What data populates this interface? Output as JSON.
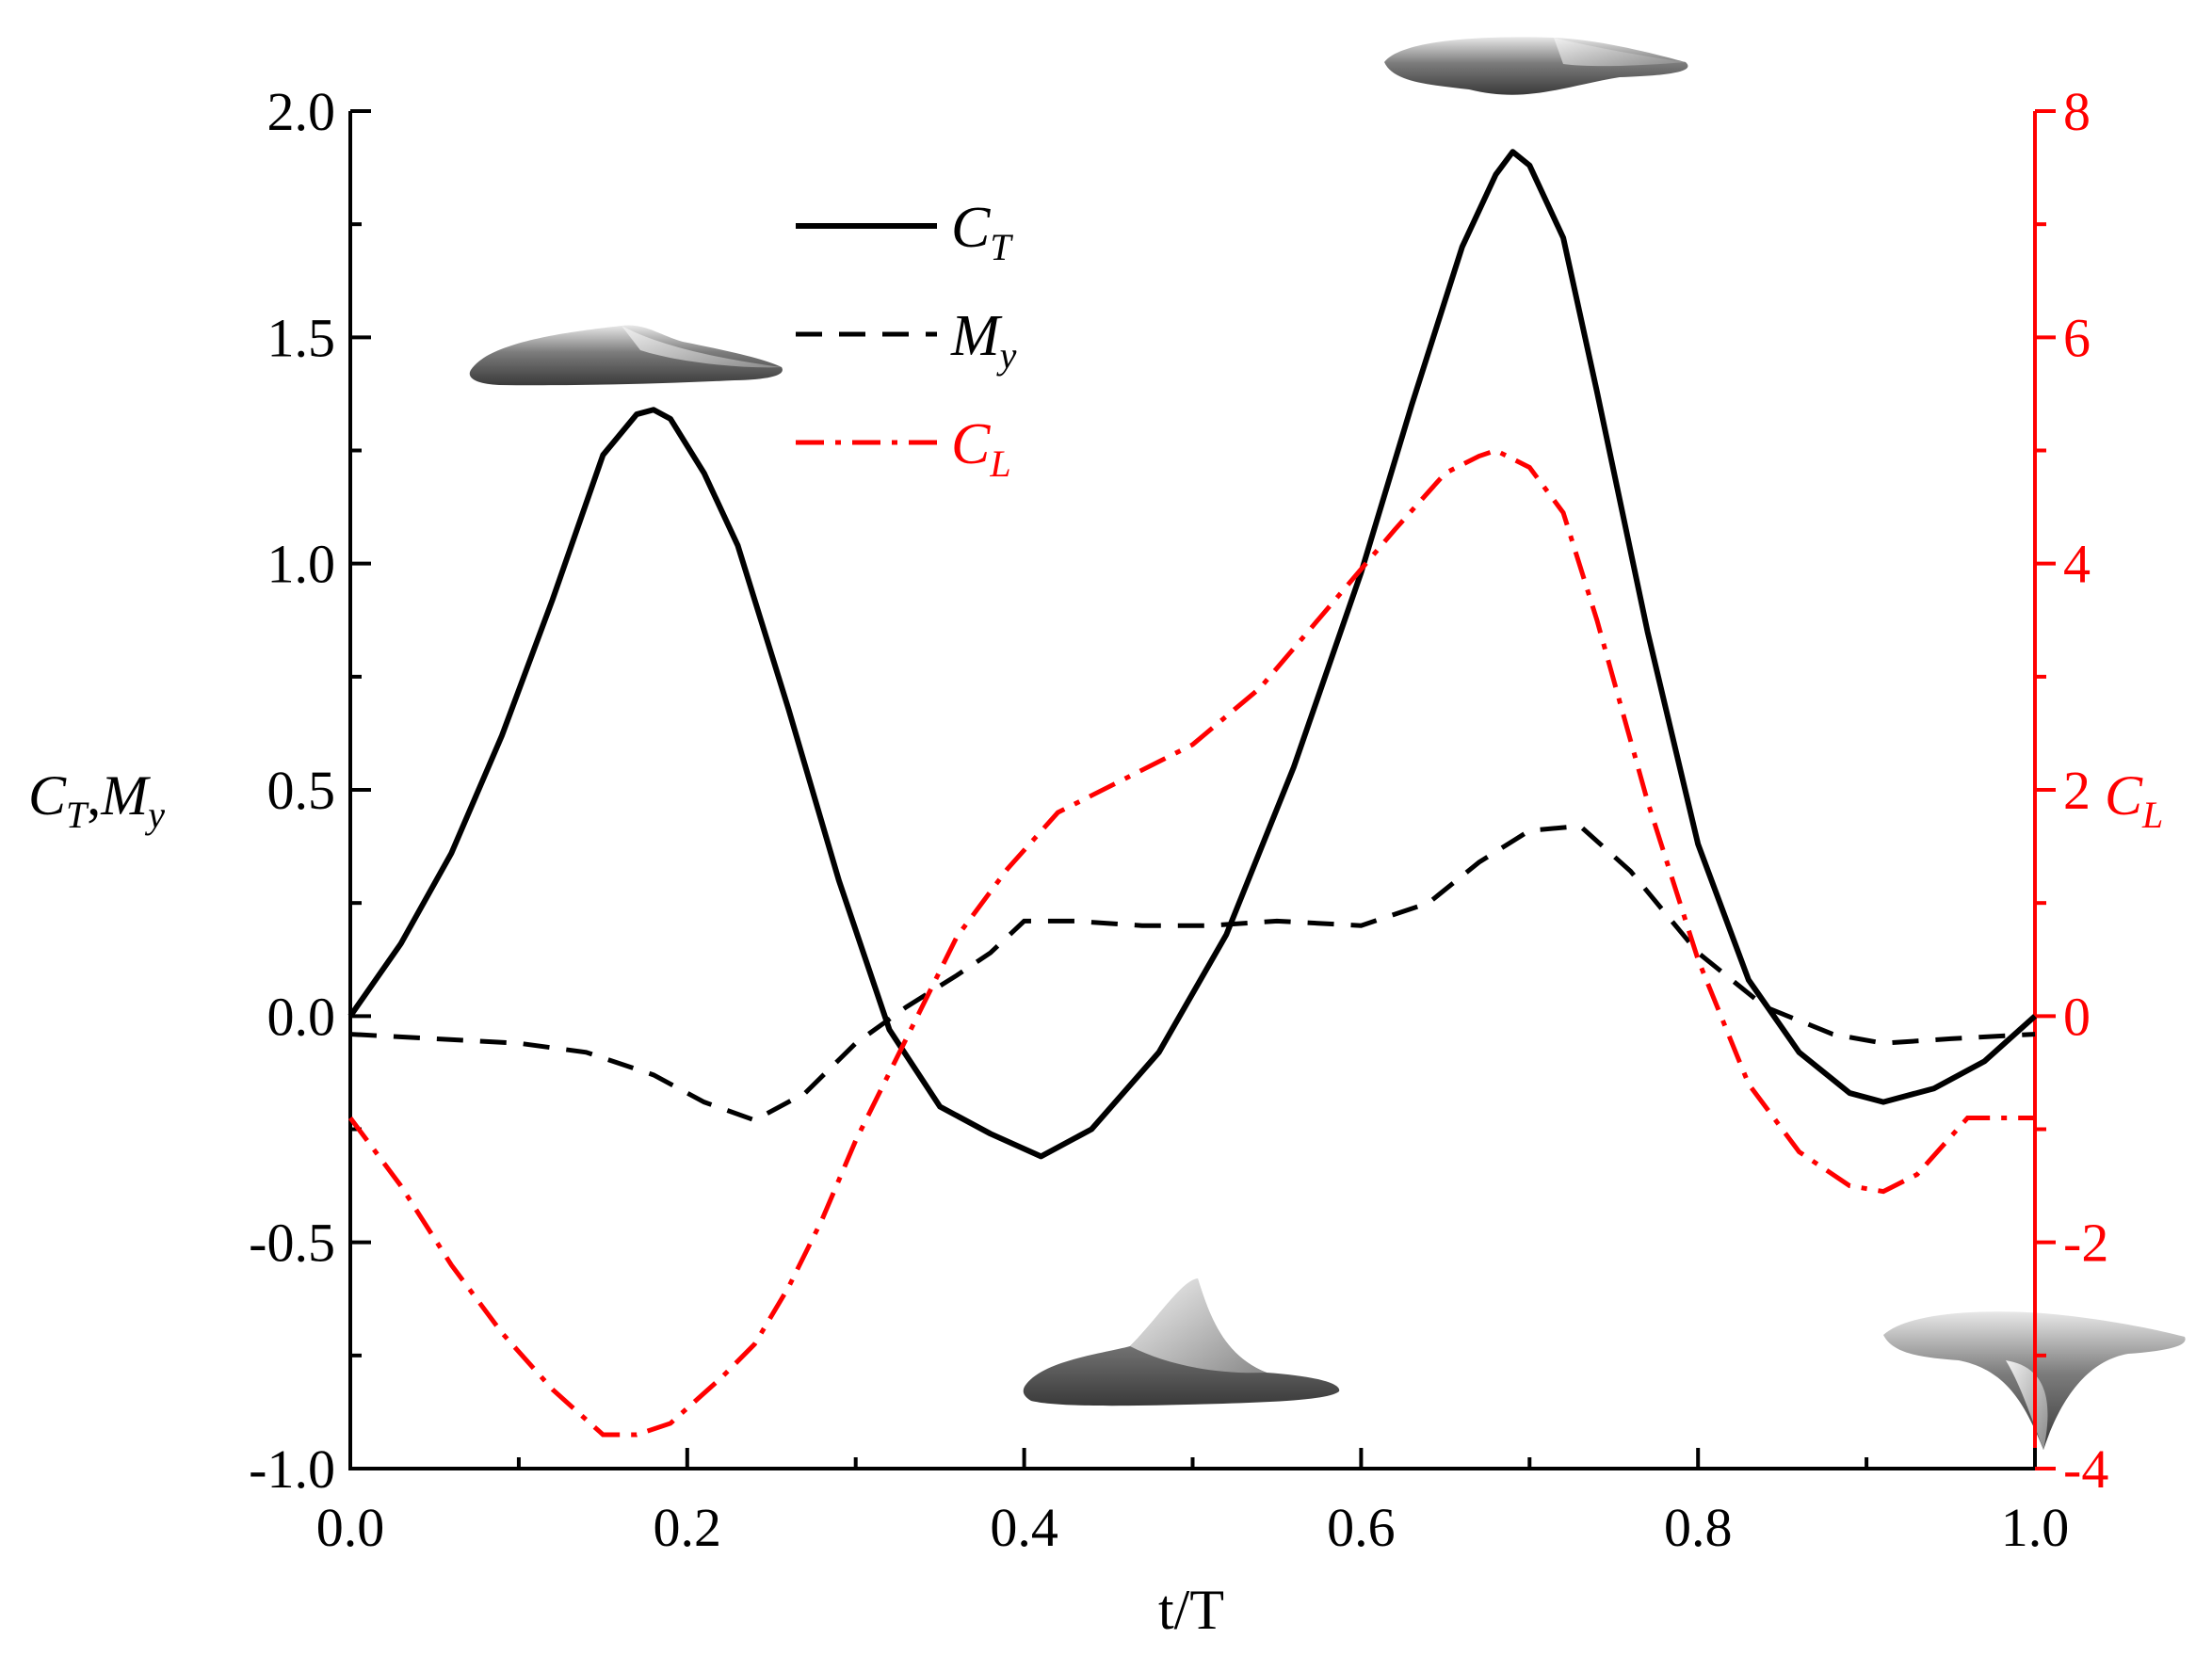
{
  "chart_data": {
    "type": "line",
    "xlabel": "t/T",
    "ylabel_left": {
      "main1": "C",
      "sub1": "T",
      "sep": ",",
      "main2": "M",
      "sub2": "y"
    },
    "ylabel_right": {
      "main": "C",
      "sub": "L"
    },
    "xlim": [
      0.0,
      1.0
    ],
    "ylim_left": [
      -1.0,
      2.0
    ],
    "ylim_right": [
      -4,
      8
    ],
    "x_ticks": [
      "0.0",
      "0.2",
      "0.4",
      "0.6",
      "0.8",
      "1.0"
    ],
    "y_left_ticks": [
      "-1.0",
      "-0.5",
      "0.0",
      "0.5",
      "1.0",
      "1.5",
      "2.0"
    ],
    "y_right_ticks": [
      "-4",
      "-2",
      "0",
      "2",
      "4",
      "6",
      "8"
    ],
    "legend": [
      {
        "main": "C",
        "sub": "T"
      },
      {
        "main": "M",
        "sub": "y"
      },
      {
        "main": "C",
        "sub": "L"
      }
    ],
    "colors": {
      "black": "#000000",
      "red": "#ff0000",
      "wing": "#6a6a6a"
    },
    "series": [
      {
        "name": "C_T",
        "axis": "left",
        "style": "solid",
        "color": "#000000",
        "x": [
          0.0,
          0.03,
          0.06,
          0.09,
          0.12,
          0.15,
          0.17,
          0.18,
          0.19,
          0.21,
          0.23,
          0.26,
          0.29,
          0.32,
          0.35,
          0.38,
          0.41,
          0.44,
          0.48,
          0.52,
          0.56,
          0.6,
          0.63,
          0.66,
          0.68,
          0.69,
          0.7,
          0.72,
          0.74,
          0.77,
          0.8,
          0.83,
          0.86,
          0.89,
          0.91,
          0.94,
          0.97,
          1.0
        ],
        "y": [
          0.0,
          0.16,
          0.36,
          0.62,
          0.92,
          1.24,
          1.33,
          1.34,
          1.32,
          1.2,
          1.04,
          0.68,
          0.3,
          -0.03,
          -0.2,
          -0.26,
          -0.31,
          -0.25,
          -0.08,
          0.18,
          0.55,
          0.98,
          1.35,
          1.7,
          1.86,
          1.91,
          1.88,
          1.72,
          1.38,
          0.85,
          0.38,
          0.08,
          -0.08,
          -0.17,
          -0.19,
          -0.16,
          -0.1,
          0.0
        ]
      },
      {
        "name": "M_y",
        "axis": "left",
        "style": "dashed",
        "color": "#000000",
        "x": [
          0.0,
          0.05,
          0.1,
          0.14,
          0.18,
          0.21,
          0.24,
          0.27,
          0.3,
          0.33,
          0.36,
          0.38,
          0.4,
          0.43,
          0.47,
          0.51,
          0.55,
          0.6,
          0.64,
          0.67,
          0.7,
          0.73,
          0.76,
          0.8,
          0.84,
          0.88,
          0.91,
          0.95,
          1.0
        ],
        "y": [
          -0.04,
          -0.05,
          -0.06,
          -0.08,
          -0.13,
          -0.19,
          -0.23,
          -0.17,
          -0.06,
          0.02,
          0.09,
          0.14,
          0.21,
          0.21,
          0.2,
          0.2,
          0.21,
          0.2,
          0.25,
          0.34,
          0.41,
          0.42,
          0.32,
          0.14,
          0.02,
          -0.04,
          -0.06,
          -0.05,
          -0.04
        ]
      },
      {
        "name": "C_L",
        "axis": "right",
        "style": "dashdot",
        "color": "#ff0000",
        "x": [
          0.0,
          0.03,
          0.06,
          0.09,
          0.12,
          0.15,
          0.17,
          0.19,
          0.22,
          0.24,
          0.26,
          0.28,
          0.3,
          0.33,
          0.36,
          0.39,
          0.42,
          0.46,
          0.5,
          0.54,
          0.58,
          0.62,
          0.65,
          0.67,
          0.68,
          0.7,
          0.72,
          0.74,
          0.77,
          0.8,
          0.83,
          0.86,
          0.89,
          0.91,
          0.93,
          0.96,
          1.0
        ],
        "y": [
          -0.9,
          -1.5,
          -2.2,
          -2.8,
          -3.3,
          -3.7,
          -3.7,
          -3.6,
          -3.2,
          -2.9,
          -2.4,
          -1.8,
          -1.1,
          -0.2,
          0.7,
          1.3,
          1.8,
          2.1,
          2.4,
          2.9,
          3.6,
          4.3,
          4.8,
          4.95,
          5.0,
          4.85,
          4.45,
          3.5,
          1.9,
          0.5,
          -0.6,
          -1.2,
          -1.5,
          -1.55,
          -1.4,
          -0.9,
          -0.9
        ]
      }
    ]
  }
}
